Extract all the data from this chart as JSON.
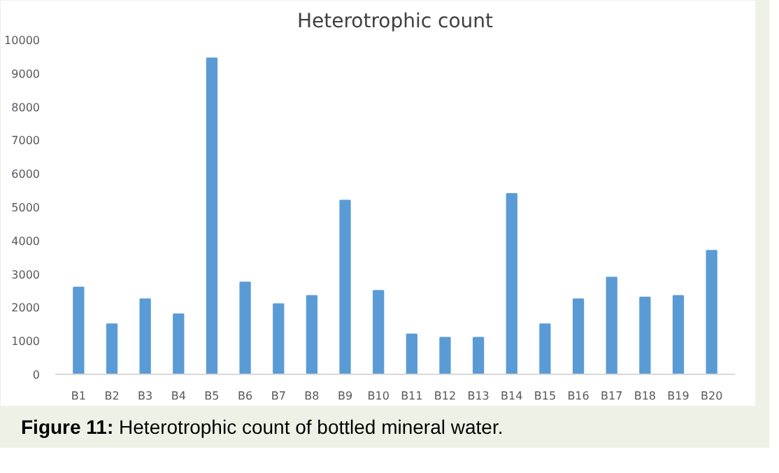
{
  "chart_data": {
    "type": "bar",
    "title": "Heterotrophic count",
    "categories": [
      "B1",
      "B2",
      "B3",
      "B4",
      "B5",
      "B6",
      "B7",
      "B8",
      "B9",
      "B10",
      "B11",
      "B12",
      "B13",
      "B14",
      "B15",
      "B16",
      "B17",
      "B18",
      "B19",
      "B20"
    ],
    "values": [
      2600,
      1500,
      2250,
      1800,
      9450,
      2750,
      2100,
      2350,
      5200,
      2500,
      1200,
      1100,
      1100,
      5400,
      1500,
      2250,
      2900,
      2300,
      2350,
      3700
    ],
    "color": "#5b9bd5",
    "ylim": [
      0,
      10000
    ],
    "yticks": [
      0,
      1000,
      2000,
      3000,
      4000,
      5000,
      6000,
      7000,
      8000,
      9000,
      10000
    ],
    "annotations": [
      "Figure 11: Heterotrophic count of bottled mineral water."
    ]
  }
}
